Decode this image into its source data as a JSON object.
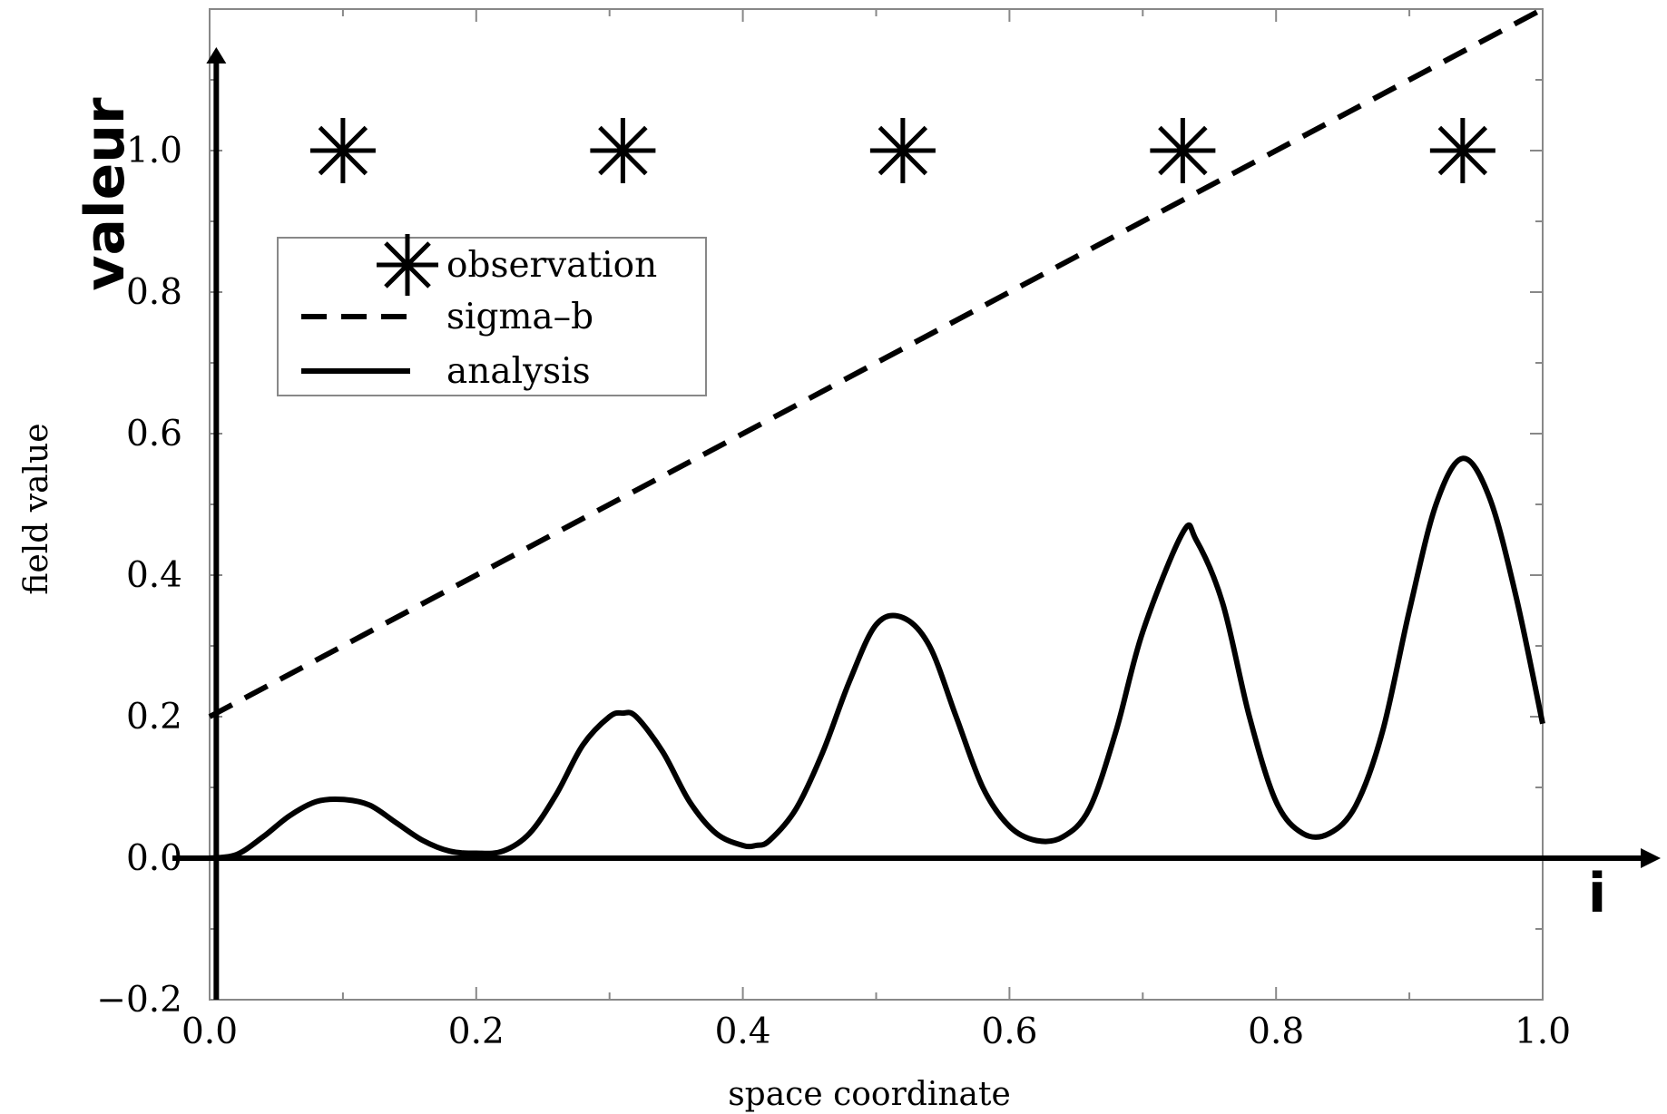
{
  "chart_data": {
    "type": "line",
    "xlabel": "space coordinate",
    "ylabel": "field value",
    "xlim": [
      0.0,
      1.0
    ],
    "ylim": [
      -0.2,
      1.2
    ],
    "xticks": [
      "0.0",
      "0.2",
      "0.4",
      "0.6",
      "0.8",
      "1.0"
    ],
    "yticks": [
      "−0.2",
      "0.0",
      "0.2",
      "0.4",
      "0.6",
      "0.8",
      "1.0"
    ],
    "grid": false,
    "legend_position": "upper-left",
    "overlay_labels": {
      "y_arrow": "valeur",
      "x_arrow": "i"
    },
    "series": [
      {
        "name": "observation",
        "style": "asterisk-markers",
        "x": [
          0.1,
          0.31,
          0.52,
          0.73,
          0.94
        ],
        "y": [
          1.0,
          1.0,
          1.0,
          1.0,
          1.0
        ]
      },
      {
        "name": "sigma–b",
        "style": "dashed",
        "x": [
          0.0,
          1.0
        ],
        "y": [
          0.2,
          1.2
        ]
      },
      {
        "name": "analysis",
        "style": "solid",
        "x": [
          0.0,
          0.02,
          0.04,
          0.06,
          0.08,
          0.1,
          0.12,
          0.14,
          0.16,
          0.18,
          0.2,
          0.22,
          0.24,
          0.26,
          0.28,
          0.3,
          0.31,
          0.32,
          0.34,
          0.36,
          0.38,
          0.4,
          0.41,
          0.42,
          0.44,
          0.46,
          0.48,
          0.5,
          0.52,
          0.54,
          0.56,
          0.58,
          0.6,
          0.62,
          0.64,
          0.66,
          0.68,
          0.7,
          0.73,
          0.74,
          0.76,
          0.78,
          0.8,
          0.82,
          0.84,
          0.86,
          0.88,
          0.9,
          0.92,
          0.94,
          0.96,
          0.98,
          1.0
        ],
        "y": [
          0.0,
          0.005,
          0.03,
          0.06,
          0.08,
          0.083,
          0.075,
          0.05,
          0.025,
          0.01,
          0.007,
          0.01,
          0.035,
          0.09,
          0.16,
          0.2,
          0.205,
          0.2,
          0.15,
          0.08,
          0.035,
          0.018,
          0.018,
          0.025,
          0.07,
          0.15,
          0.25,
          0.33,
          0.34,
          0.3,
          0.2,
          0.1,
          0.045,
          0.025,
          0.03,
          0.07,
          0.18,
          0.32,
          0.46,
          0.45,
          0.36,
          0.2,
          0.08,
          0.035,
          0.035,
          0.075,
          0.18,
          0.35,
          0.5,
          0.565,
          0.51,
          0.37,
          0.19
        ]
      }
    ]
  }
}
